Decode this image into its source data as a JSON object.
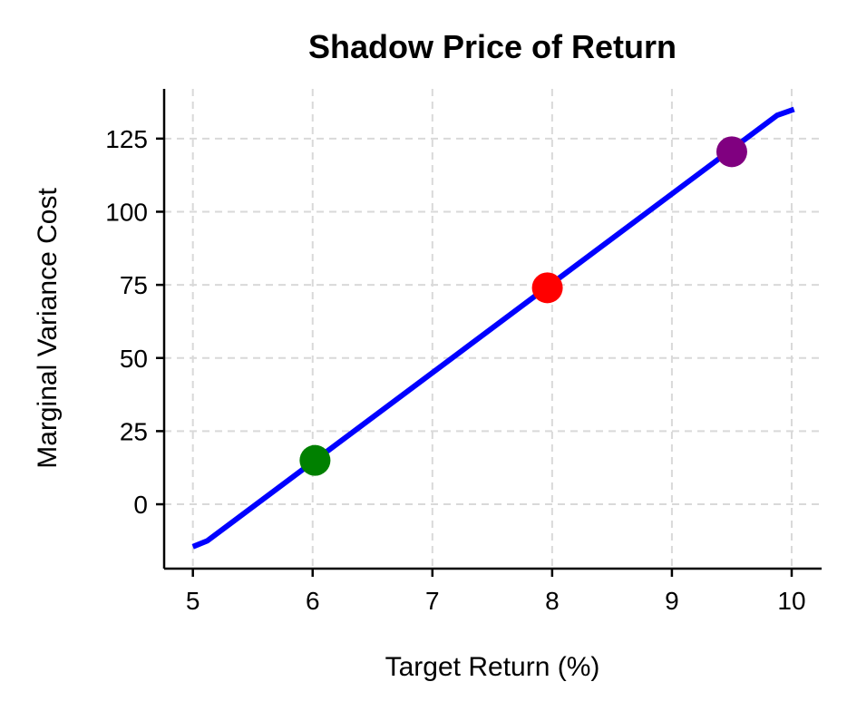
{
  "chart_data": {
    "type": "line",
    "title": "Shadow Price of Return",
    "xlabel": "Target Return (%)",
    "ylabel": "Marginal Variance Cost",
    "xlim": [
      4.76,
      10.25
    ],
    "ylim": [
      -22,
      142
    ],
    "xticks": [
      5,
      6,
      7,
      8,
      9,
      10
    ],
    "yticks": [
      0,
      25,
      50,
      75,
      100,
      125
    ],
    "grid": true,
    "series": [
      {
        "color": "#0000ff",
        "x": [
          5.0,
          5.12,
          9.88,
          10.02
        ],
        "y": [
          -14.5,
          -12.5,
          133.0,
          135.0
        ]
      }
    ],
    "points": [
      {
        "x": 6.02,
        "y": 15.0,
        "color": "#008000"
      },
      {
        "x": 7.96,
        "y": 74.0,
        "color": "#ff0000"
      },
      {
        "x": 9.5,
        "y": 120.5,
        "color": "#800080"
      }
    ]
  }
}
